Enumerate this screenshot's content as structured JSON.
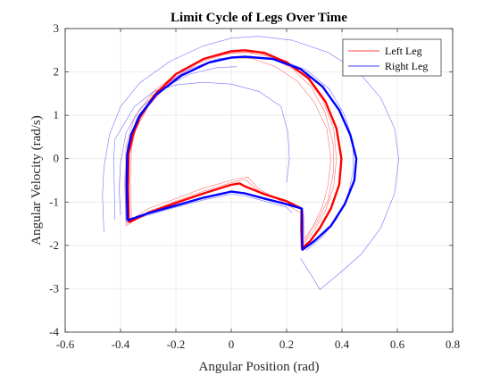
{
  "chart_data": {
    "type": "line",
    "title": "Limit Cycle of Legs Over Time",
    "xlabel": "Angular Position (rad)",
    "ylabel": "Angular Velocity (rad/s)",
    "xlim": [
      -0.6,
      0.8
    ],
    "ylim": [
      -4,
      3
    ],
    "xticks": [
      -0.6,
      -0.4,
      -0.2,
      0,
      0.2,
      0.4,
      0.6,
      0.8
    ],
    "xtick_labels": [
      "-0.6",
      "-0.4",
      "-0.2",
      "0",
      "0.2",
      "0.4",
      "0.6",
      "0.8"
    ],
    "yticks": [
      -4,
      -3,
      -2,
      -1,
      0,
      1,
      2,
      3
    ],
    "ytick_labels": [
      "-4",
      "-3",
      "-2",
      "-1",
      "0",
      "1",
      "2",
      "3"
    ],
    "grid": true,
    "legend_position": "top-right",
    "series": [
      {
        "name": "Left Leg",
        "color": "#ff0000",
        "traces": [
          {
            "style": "converged",
            "points": [
              [
                -0.37,
                -1.47
              ],
              [
                -0.373,
                -0.7
              ],
              [
                -0.371,
                0.1
              ],
              [
                -0.355,
                0.55
              ],
              [
                -0.33,
                0.95
              ],
              [
                -0.28,
                1.45
              ],
              [
                -0.2,
                1.95
              ],
              [
                -0.1,
                2.3
              ],
              [
                0.0,
                2.48
              ],
              [
                0.05,
                2.5
              ],
              [
                0.12,
                2.44
              ],
              [
                0.2,
                2.22
              ],
              [
                0.28,
                1.85
              ],
              [
                0.34,
                1.32
              ],
              [
                0.38,
                0.7
              ],
              [
                0.398,
                0.0
              ],
              [
                0.39,
                -0.6
              ],
              [
                0.36,
                -1.15
              ],
              [
                0.32,
                -1.6
              ],
              [
                0.285,
                -1.9
              ],
              [
                0.255,
                -2.07
              ],
              [
                0.253,
                -1.6
              ],
              [
                0.254,
                -1.15
              ],
              [
                0.2,
                -0.98
              ],
              [
                0.12,
                -0.82
              ],
              [
                0.05,
                -0.64
              ],
              [
                0.03,
                -0.57
              ],
              [
                0.0,
                -0.6
              ],
              [
                -0.1,
                -0.8
              ],
              [
                -0.2,
                -1.02
              ],
              [
                -0.3,
                -1.25
              ],
              [
                -0.37,
                -1.47
              ]
            ]
          },
          {
            "style": "transient",
            "points": [
              [
                -0.38,
                -1.55
              ],
              [
                -0.385,
                -0.6
              ],
              [
                -0.38,
                0.3
              ],
              [
                -0.35,
                0.95
              ],
              [
                -0.28,
                1.55
              ],
              [
                -0.18,
                2.05
              ],
              [
                -0.08,
                2.33
              ],
              [
                0.02,
                2.46
              ],
              [
                0.1,
                2.44
              ],
              [
                0.2,
                2.25
              ],
              [
                0.27,
                1.9
              ],
              [
                0.33,
                1.35
              ],
              [
                0.37,
                0.7
              ],
              [
                0.38,
                0.0
              ],
              [
                0.37,
                -0.65
              ],
              [
                0.34,
                -1.2
              ],
              [
                0.3,
                -1.65
              ],
              [
                0.26,
                -1.98
              ],
              [
                0.26,
                -1.5
              ],
              [
                0.26,
                -1.2
              ],
              [
                0.2,
                -1.0
              ],
              [
                0.1,
                -0.75
              ],
              [
                0.05,
                -0.48
              ],
              [
                0.0,
                -0.55
              ],
              [
                -0.1,
                -0.75
              ],
              [
                -0.2,
                -0.98
              ],
              [
                -0.3,
                -1.22
              ],
              [
                -0.38,
                -1.55
              ]
            ]
          },
          {
            "style": "transient",
            "points": [
              [
                -0.36,
                -1.4
              ],
              [
                -0.365,
                -0.5
              ],
              [
                -0.36,
                0.25
              ],
              [
                -0.34,
                0.85
              ],
              [
                -0.28,
                1.4
              ],
              [
                -0.2,
                1.85
              ],
              [
                -0.1,
                2.18
              ],
              [
                0.0,
                2.33
              ],
              [
                0.08,
                2.3
              ],
              [
                0.16,
                2.12
              ],
              [
                0.24,
                1.78
              ],
              [
                0.3,
                1.3
              ],
              [
                0.345,
                0.7
              ],
              [
                0.36,
                0.0
              ],
              [
                0.35,
                -0.6
              ],
              [
                0.33,
                -1.1
              ],
              [
                0.3,
                -1.5
              ],
              [
                0.265,
                -1.85
              ],
              [
                0.262,
                -1.3
              ],
              [
                0.2,
                -1.05
              ],
              [
                0.1,
                -0.7
              ],
              [
                0.06,
                -0.42
              ],
              [
                0.0,
                -0.5
              ],
              [
                -0.1,
                -0.68
              ],
              [
                -0.2,
                -0.92
              ],
              [
                -0.3,
                -1.15
              ],
              [
                -0.36,
                -1.4
              ]
            ]
          },
          {
            "style": "transient",
            "points": [
              [
                -0.375,
                -1.5
              ],
              [
                -0.38,
                -0.55
              ],
              [
                -0.36,
                0.5
              ],
              [
                -0.3,
                1.2
              ],
              [
                -0.22,
                1.78
              ],
              [
                -0.12,
                2.2
              ],
              [
                -0.02,
                2.42
              ],
              [
                0.06,
                2.45
              ],
              [
                0.14,
                2.35
              ],
              [
                0.22,
                2.08
              ],
              [
                0.29,
                1.65
              ],
              [
                0.34,
                1.05
              ],
              [
                0.368,
                0.35
              ],
              [
                0.37,
                -0.3
              ],
              [
                0.35,
                -0.95
              ],
              [
                0.31,
                -1.45
              ],
              [
                0.27,
                -1.85
              ],
              [
                0.258,
                -1.95
              ]
            ]
          }
        ]
      },
      {
        "name": "Right Leg",
        "color": "#0000ff",
        "traces": [
          {
            "style": "converged",
            "points": [
              [
                -0.375,
                -1.42
              ],
              [
                -0.378,
                -0.6
              ],
              [
                -0.376,
                0.1
              ],
              [
                -0.362,
                0.55
              ],
              [
                -0.33,
                1.0
              ],
              [
                -0.27,
                1.48
              ],
              [
                -0.18,
                1.92
              ],
              [
                -0.08,
                2.22
              ],
              [
                0.0,
                2.33
              ],
              [
                0.05,
                2.35
              ],
              [
                0.15,
                2.3
              ],
              [
                0.25,
                2.07
              ],
              [
                0.33,
                1.66
              ],
              [
                0.39,
                1.12
              ],
              [
                0.43,
                0.55
              ],
              [
                0.452,
                0.0
              ],
              [
                0.445,
                -0.5
              ],
              [
                0.41,
                -1.05
              ],
              [
                0.36,
                -1.55
              ],
              [
                0.3,
                -1.9
              ],
              [
                0.257,
                -2.1
              ],
              [
                0.256,
                -1.7
              ],
              [
                0.255,
                -1.15
              ],
              [
                0.2,
                -1.05
              ],
              [
                0.12,
                -0.92
              ],
              [
                0.05,
                -0.8
              ],
              [
                0.0,
                -0.76
              ],
              [
                -0.1,
                -0.9
              ],
              [
                -0.2,
                -1.08
              ],
              [
                -0.3,
                -1.26
              ],
              [
                -0.375,
                -1.42
              ]
            ]
          },
          {
            "style": "transient",
            "points": [
              [
                -0.46,
                -1.7
              ],
              [
                -0.465,
                -0.85
              ],
              [
                -0.46,
                -0.2
              ],
              [
                -0.44,
                0.55
              ],
              [
                -0.4,
                1.2
              ],
              [
                -0.33,
                1.75
              ],
              [
                -0.22,
                2.25
              ],
              [
                -0.1,
                2.6
              ],
              [
                0.0,
                2.78
              ],
              [
                0.1,
                2.82
              ],
              [
                0.22,
                2.73
              ],
              [
                0.35,
                2.45
              ],
              [
                0.46,
                2.0
              ],
              [
                0.54,
                1.4
              ],
              [
                0.59,
                0.7
              ],
              [
                0.605,
                0.0
              ],
              [
                0.59,
                -0.8
              ],
              [
                0.54,
                -1.6
              ],
              [
                0.47,
                -2.2
              ],
              [
                0.39,
                -2.65
              ],
              [
                0.32,
                -3.02
              ],
              [
                0.3,
                -2.8
              ],
              [
                0.25,
                -2.3
              ]
            ]
          },
          {
            "style": "transient",
            "points": [
              [
                -0.4,
                -1.3
              ],
              [
                -0.405,
                -0.7
              ],
              [
                -0.4,
                -0.1
              ],
              [
                -0.38,
                0.6
              ],
              [
                -0.33,
                1.15
              ],
              [
                -0.25,
                1.62
              ],
              [
                -0.15,
                1.95
              ],
              [
                -0.05,
                2.1
              ],
              [
                0.02,
                2.12
              ]
            ]
          },
          {
            "style": "transient",
            "points": [
              [
                -0.42,
                -1.4
              ],
              [
                -0.425,
                0.0
              ],
              [
                -0.42,
                0.45
              ],
              [
                -0.35,
                1.2
              ],
              [
                -0.28,
                1.55
              ],
              [
                -0.2,
                1.7
              ],
              [
                -0.1,
                1.76
              ],
              [
                0.0,
                1.72
              ],
              [
                0.1,
                1.55
              ],
              [
                0.18,
                1.2
              ],
              [
                0.205,
                0.6
              ],
              [
                0.21,
                0.0
              ],
              [
                0.2,
                -0.55
              ]
            ]
          },
          {
            "style": "transient",
            "points": [
              [
                -0.38,
                -1.45
              ],
              [
                -0.382,
                -0.5
              ],
              [
                -0.375,
                0.3
              ],
              [
                -0.34,
                0.95
              ],
              [
                -0.27,
                1.55
              ],
              [
                -0.17,
                2.02
              ],
              [
                -0.05,
                2.3
              ],
              [
                0.05,
                2.37
              ],
              [
                0.17,
                2.3
              ],
              [
                0.27,
                2.05
              ],
              [
                0.355,
                1.6
              ],
              [
                0.41,
                1.0
              ],
              [
                0.44,
                0.4
              ],
              [
                0.44,
                -0.3
              ],
              [
                0.42,
                -0.9
              ],
              [
                0.38,
                -1.4
              ],
              [
                0.33,
                -1.8
              ],
              [
                0.27,
                -2.12
              ]
            ]
          },
          {
            "style": "transient",
            "points": [
              [
                0.22,
                -1.25
              ],
              [
                0.2,
                -1.12
              ],
              [
                0.12,
                -0.98
              ],
              [
                0.05,
                -0.86
              ],
              [
                0.0,
                -0.82
              ],
              [
                -0.1,
                -0.95
              ],
              [
                -0.2,
                -1.12
              ],
              [
                -0.3,
                -1.3
              ],
              [
                -0.38,
                -1.47
              ]
            ]
          }
        ]
      }
    ]
  }
}
